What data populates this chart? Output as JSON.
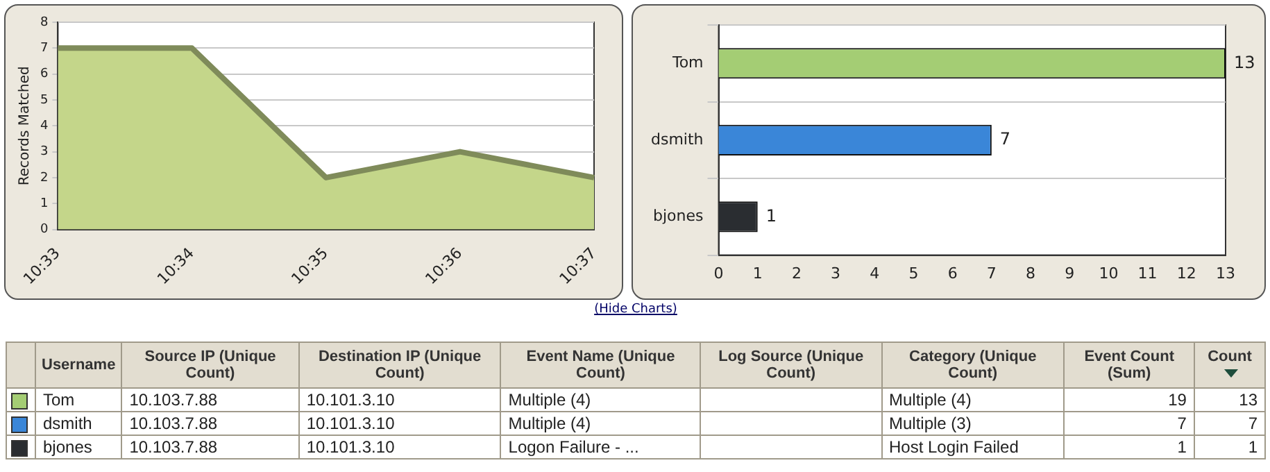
{
  "chart_data": [
    {
      "type": "area",
      "ylabel": "Records Matched",
      "categories": [
        "10:33",
        "10:34",
        "10:35",
        "10:36",
        "10:37"
      ],
      "values": [
        7,
        7,
        2,
        3,
        2
      ],
      "color": "#c4d68a",
      "ylim": [
        0,
        8
      ],
      "yticks": [
        0,
        1,
        2,
        3,
        4,
        5,
        6,
        7,
        8
      ],
      "grid": "y",
      "marker": "none"
    },
    {
      "type": "bar",
      "orientation": "horizontal",
      "categories": [
        "Tom",
        "dsmith",
        "bjones"
      ],
      "values": [
        13,
        7,
        1
      ],
      "colors": [
        "#a4cd74",
        "#3a86d8",
        "#2a2d31"
      ],
      "xlim": [
        0,
        13
      ],
      "xticks": [
        0,
        1,
        2,
        3,
        4,
        5,
        6,
        7,
        8,
        9,
        10,
        11,
        12,
        13
      ],
      "grid": "y",
      "data_labels": true
    },
    {
      "type": "other",
      "title": "(Hide Charts)",
      "categories": [
        "Username",
        "Source IP (Unique Count)",
        "Destination IP (Unique Count)",
        "Event Name (Unique Count)",
        "Log Source (Unique Count)",
        "Category (Unique Count)",
        "Event Count (Sum)",
        "Count"
      ],
      "annotations": [
        "Tom",
        "10.103.7.88",
        "10.101.3.10",
        "Multiple (4)",
        null,
        "Multiple (4)",
        "19",
        "13",
        "dsmith",
        "10.103.7.88",
        "10.101.3.10",
        "Multiple (4)",
        null,
        "Multiple (3)",
        "7",
        "7",
        "bjones",
        "10.103.7.88",
        "10.101.3.10",
        "Logon Failure - ...",
        null,
        "Host Login Failed",
        "1",
        "1"
      ]
    }
  ]
}
